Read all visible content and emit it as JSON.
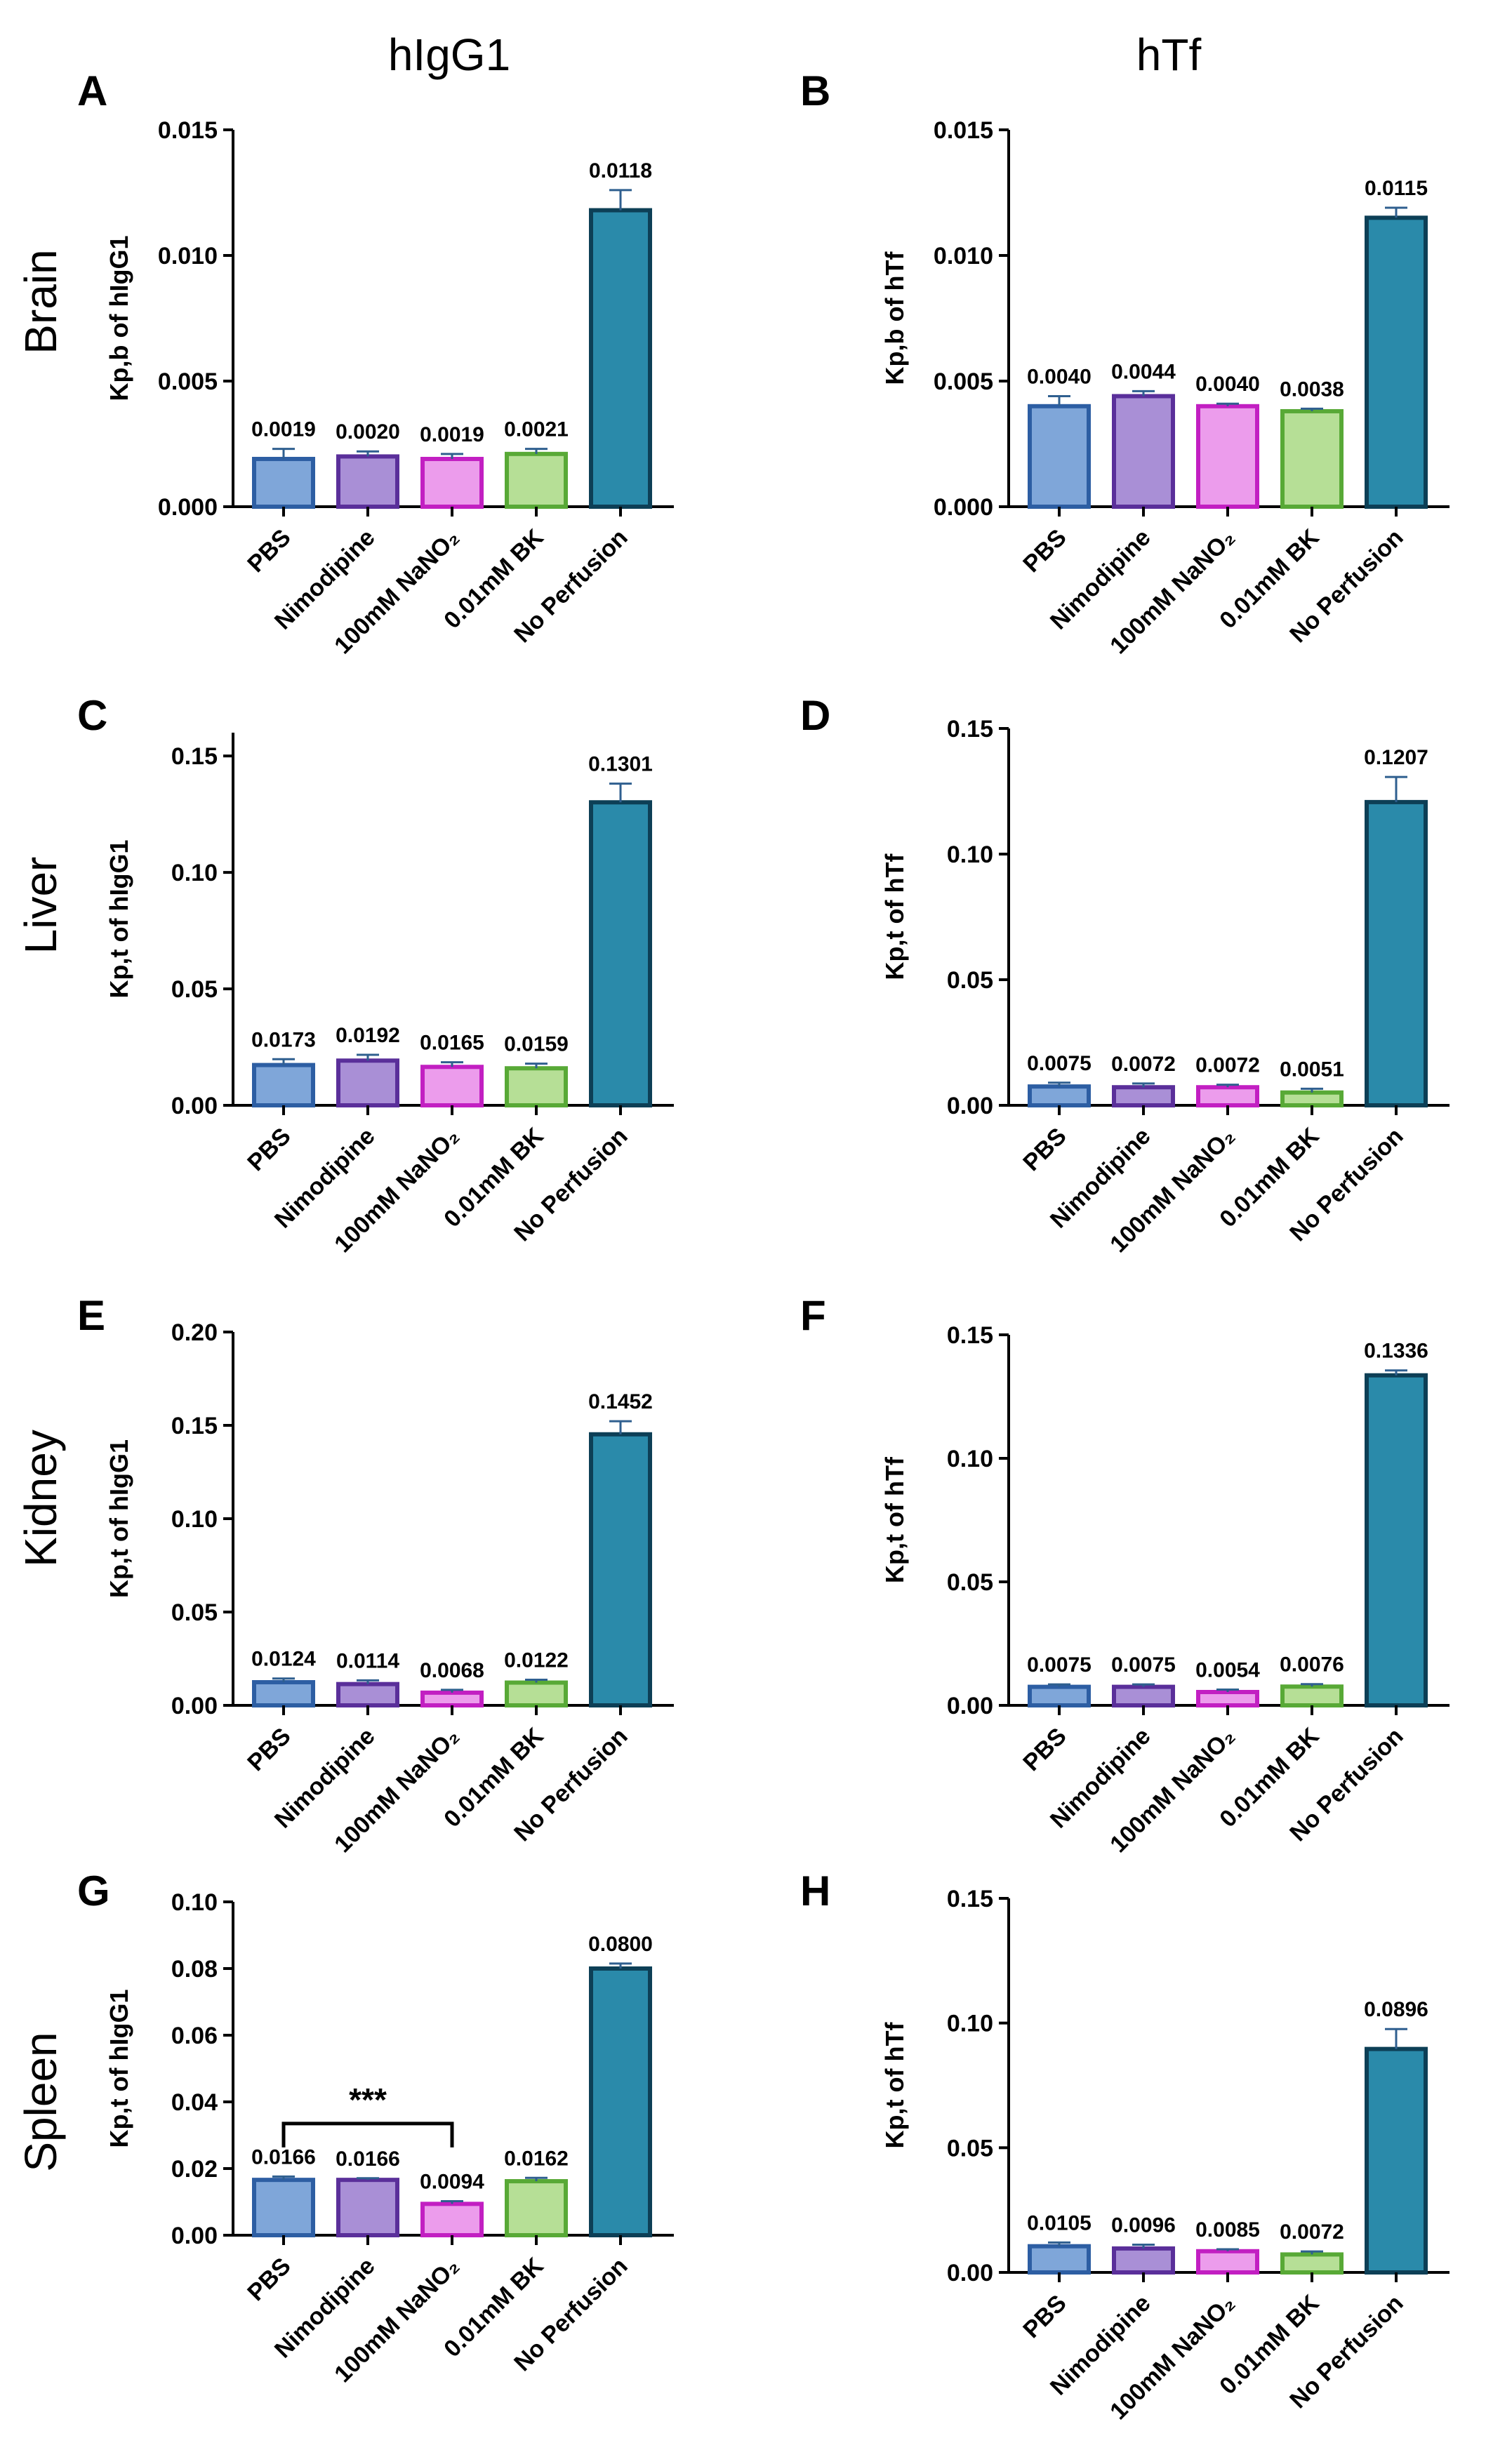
{
  "column_titles": [
    "hIgG1",
    "hTf"
  ],
  "row_titles": [
    "Brain",
    "Liver",
    "Kidney",
    "Spleen"
  ],
  "categories": [
    "PBS",
    "Nimodipine",
    "100mM NaNO₂",
    "0.01mM BK",
    "No Perfusion"
  ],
  "series_colors": {
    "fills": [
      "#7fa6d9",
      "#a98fd6",
      "#ec9cec",
      "#b6df96",
      "#2a8aaa"
    ],
    "strokes": [
      "#2d5ea3",
      "#5a2f9a",
      "#c21fc2",
      "#58a936",
      "#0d3f56"
    ],
    "error_bar": "#2f5f8f"
  },
  "chart_data": [
    {
      "panel": "A",
      "type": "bar",
      "title": "",
      "xlabel": "",
      "ylabel": "Kp,b of hIgG1",
      "ylim": [
        0,
        0.015
      ],
      "yticks": [
        "0.000",
        "0.005",
        "0.010",
        "0.015"
      ],
      "ytick_values": [
        0,
        0.005,
        0.01,
        0.015
      ],
      "categories": [
        "PBS",
        "Nimodipine",
        "100mM NaNO₂",
        "0.01mM BK",
        "No Perfusion"
      ],
      "values": [
        0.0019,
        0.002,
        0.0019,
        0.0021,
        0.0118
      ],
      "errors": [
        0.0004,
        0.0002,
        0.0002,
        0.0002,
        0.0008
      ],
      "labels": [
        "0.0019",
        "0.0020",
        "0.0019",
        "0.0021",
        "0.0118"
      ]
    },
    {
      "panel": "B",
      "type": "bar",
      "title": "",
      "xlabel": "",
      "ylabel": "Kp,b of hTf",
      "ylim": [
        0,
        0.015
      ],
      "yticks": [
        "0.000",
        "0.005",
        "0.010",
        "0.015"
      ],
      "ytick_values": [
        0,
        0.005,
        0.01,
        0.015
      ],
      "categories": [
        "PBS",
        "Nimodipine",
        "100mM NaNO₂",
        "0.01mM BK",
        "No Perfusion"
      ],
      "values": [
        0.004,
        0.0044,
        0.004,
        0.0038,
        0.0115
      ],
      "errors": [
        0.0004,
        0.0002,
        0.0001,
        0.0001,
        0.0004
      ],
      "labels": [
        "0.0040",
        "0.0044",
        "0.0040",
        "0.0038",
        "0.0115"
      ]
    },
    {
      "panel": "C",
      "type": "bar",
      "title": "",
      "xlabel": "",
      "ylabel": "Kp,t of hIgG1",
      "ylim": [
        0,
        0.16
      ],
      "yticks": [
        "0.00",
        "0.05",
        "0.10",
        "0.15"
      ],
      "ytick_values": [
        0,
        0.05,
        0.1,
        0.15
      ],
      "categories": [
        "PBS",
        "Nimodipine",
        "100mM NaNO₂",
        "0.01mM BK",
        "No Perfusion"
      ],
      "values": [
        0.0173,
        0.0192,
        0.0165,
        0.0159,
        0.1301
      ],
      "errors": [
        0.0025,
        0.0025,
        0.002,
        0.002,
        0.008
      ],
      "labels": [
        "0.0173",
        "0.0192",
        "0.0165",
        "0.0159",
        "0.1301"
      ]
    },
    {
      "panel": "D",
      "type": "bar",
      "title": "",
      "xlabel": "",
      "ylabel": "Kp,t of hTf",
      "ylim": [
        0,
        0.15
      ],
      "yticks": [
        "0.00",
        "0.05",
        "0.10",
        "0.15"
      ],
      "ytick_values": [
        0,
        0.05,
        0.1,
        0.15
      ],
      "categories": [
        "PBS",
        "Nimodipine",
        "100mM NaNO₂",
        "0.01mM BK",
        "No Perfusion"
      ],
      "values": [
        0.0075,
        0.0072,
        0.0072,
        0.0051,
        0.1207
      ],
      "errors": [
        0.0015,
        0.0015,
        0.001,
        0.0015,
        0.01
      ],
      "labels": [
        "0.0075",
        "0.0072",
        "0.0072",
        "0.0051",
        "0.1207"
      ]
    },
    {
      "panel": "E",
      "type": "bar",
      "title": "",
      "xlabel": "",
      "ylabel": "Kp,t of hIgG1",
      "ylim": [
        0,
        0.2
      ],
      "yticks": [
        "0.00",
        "0.05",
        "0.10",
        "0.15",
        "0.20"
      ],
      "ytick_values": [
        0,
        0.05,
        0.1,
        0.15,
        0.2
      ],
      "categories": [
        "PBS",
        "Nimodipine",
        "100mM NaNO₂",
        "0.01mM BK",
        "No Perfusion"
      ],
      "values": [
        0.0124,
        0.0114,
        0.0068,
        0.0122,
        0.1452
      ],
      "errors": [
        0.002,
        0.002,
        0.0015,
        0.0015,
        0.007
      ],
      "labels": [
        "0.0124",
        "0.0114",
        "0.0068",
        "0.0122",
        "0.1452"
      ]
    },
    {
      "panel": "F",
      "type": "bar",
      "title": "",
      "xlabel": "",
      "ylabel": "Kp,t of hTf",
      "ylim": [
        0,
        0.15
      ],
      "yticks": [
        "0.00",
        "0.05",
        "0.10",
        "0.15"
      ],
      "ytick_values": [
        0,
        0.05,
        0.1,
        0.15
      ],
      "categories": [
        "PBS",
        "Nimodipine",
        "100mM NaNO₂",
        "0.01mM BK",
        "No Perfusion"
      ],
      "values": [
        0.0075,
        0.0075,
        0.0054,
        0.0076,
        0.1336
      ],
      "errors": [
        0.001,
        0.001,
        0.001,
        0.001,
        0.002
      ],
      "labels": [
        "0.0075",
        "0.0075",
        "0.0054",
        "0.0076",
        "0.1336"
      ]
    },
    {
      "panel": "G",
      "type": "bar",
      "title": "",
      "xlabel": "",
      "ylabel": "Kp,t of hIgG1",
      "ylim": [
        0,
        0.1
      ],
      "yticks": [
        "0.00",
        "0.02",
        "0.04",
        "0.06",
        "0.08",
        "0.10"
      ],
      "ytick_values": [
        0,
        0.02,
        0.04,
        0.06,
        0.08,
        0.1
      ],
      "categories": [
        "PBS",
        "Nimodipine",
        "100mM NaNO₂",
        "0.01mM BK",
        "No Perfusion"
      ],
      "values": [
        0.0166,
        0.0166,
        0.0094,
        0.0162,
        0.08
      ],
      "errors": [
        0.001,
        0.0005,
        0.0008,
        0.001,
        0.0015
      ],
      "labels": [
        "0.0166",
        "0.0166",
        "0.0094",
        "0.0162",
        "0.0800"
      ],
      "annotation": {
        "text": "***",
        "from": "PBS",
        "to": "100mM NaNO₂",
        "y": 0.0335
      }
    },
    {
      "panel": "H",
      "type": "bar",
      "title": "",
      "xlabel": "",
      "ylabel": "Kp,t of hTf",
      "ylim": [
        0,
        0.15
      ],
      "yticks": [
        "0.00",
        "0.05",
        "0.10",
        "0.15"
      ],
      "ytick_values": [
        0,
        0.05,
        0.1,
        0.15
      ],
      "categories": [
        "PBS",
        "Nimodipine",
        "100mM NaNO₂",
        "0.01mM BK",
        "No Perfusion"
      ],
      "values": [
        0.0105,
        0.0096,
        0.0085,
        0.0072,
        0.0896
      ],
      "errors": [
        0.0015,
        0.0015,
        0.0008,
        0.0012,
        0.008
      ],
      "labels": [
        "0.0105",
        "0.0096",
        "0.0085",
        "0.0072",
        "0.0896"
      ]
    }
  ]
}
